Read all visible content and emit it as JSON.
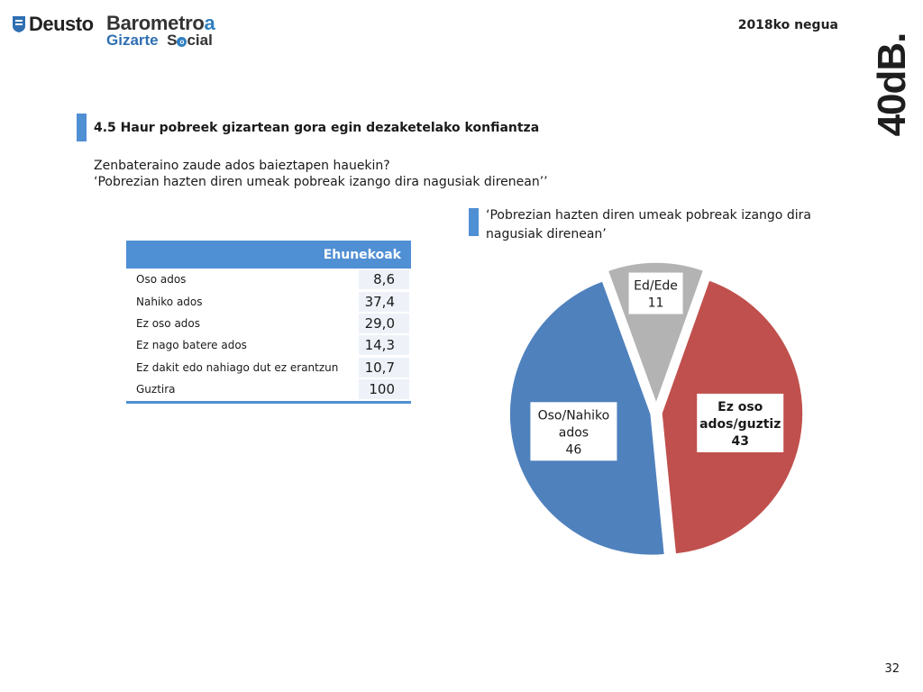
{
  "header": {
    "deusto": "Deusto",
    "barometro_main": "Barometro",
    "barometro_accent": "a",
    "gizarte": "Gizarte",
    "social_s": "S",
    "social_o": "o",
    "social_rest": "cial",
    "season": "2018ko negua",
    "brand": "40dB."
  },
  "section_title": "4.5 Haur pobreek gizartean gora egin dezaketelako konfiantza",
  "question_line1": "Zenbateraino zaude ados baieztapen hauekin?",
  "question_line2": "‘Pobrezian hazten diren umeak pobreak izango dira nagusiak direnean’’",
  "table": {
    "header": "Ehunekoak",
    "rows": [
      {
        "label": "Oso ados",
        "value": "8,6"
      },
      {
        "label": "Nahiko ados",
        "value": "37,4"
      },
      {
        "label": "Ez oso ados",
        "value": "29,0"
      },
      {
        "label": "Ez nago batere ados",
        "value": "14,3"
      },
      {
        "label": "Ez dakit edo nahiago dut ez erantzun",
        "value": "10,7"
      },
      {
        "label": "Guztira",
        "value": "100"
      }
    ]
  },
  "chart_data": {
    "type": "pie",
    "title": "‘Pobrezian hazten diren umeak pobreak izango dira nagusiak direnean’",
    "slices": [
      {
        "label_lines": [
          "Ed/Ede",
          "11"
        ],
        "value": 11,
        "color": "#b3b3b3"
      },
      {
        "label_lines": [
          "Ez oso",
          "ados/guztiz",
          "43"
        ],
        "value": 43,
        "color": "#c0504d"
      },
      {
        "label_lines": [
          "Oso/Nahiko",
          "ados",
          "46"
        ],
        "value": 46,
        "color": "#4f81bd"
      }
    ]
  },
  "page_number": "32"
}
